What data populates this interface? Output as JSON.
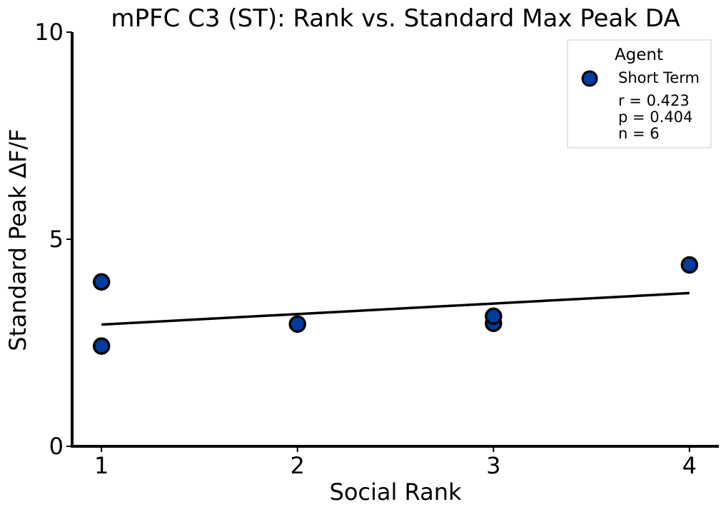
{
  "chart_data": {
    "type": "scatter",
    "title": "mPFC C3 (ST): Rank vs. Standard Max Peak DA",
    "xlabel": "Social Rank",
    "ylabel": "Standard Peak ΔF/F",
    "xlim": [
      0.85,
      4.15
    ],
    "ylim": [
      0,
      10
    ],
    "x_ticks": [
      "1",
      "2",
      "3",
      "4"
    ],
    "y_ticks": [
      "0",
      "5",
      "10"
    ],
    "grid": false,
    "series": [
      {
        "name": "Short Term",
        "color": "#003c9e",
        "edge_color": "#000000",
        "points": [
          {
            "x": 1,
            "y": 3.97
          },
          {
            "x": 1,
            "y": 2.42
          },
          {
            "x": 2,
            "y": 2.95
          },
          {
            "x": 3,
            "y": 2.97
          },
          {
            "x": 3,
            "y": 3.14
          },
          {
            "x": 4,
            "y": 4.38
          }
        ]
      }
    ],
    "fit_line": {
      "x": [
        1,
        4
      ],
      "y": [
        2.94,
        3.7
      ],
      "color": "#000000"
    },
    "legend": {
      "title": "Agent",
      "placement": "top-right",
      "entry": "Short Term",
      "stats": [
        "r = 0.423",
        "p = 0.404",
        "n = 6"
      ]
    }
  }
}
